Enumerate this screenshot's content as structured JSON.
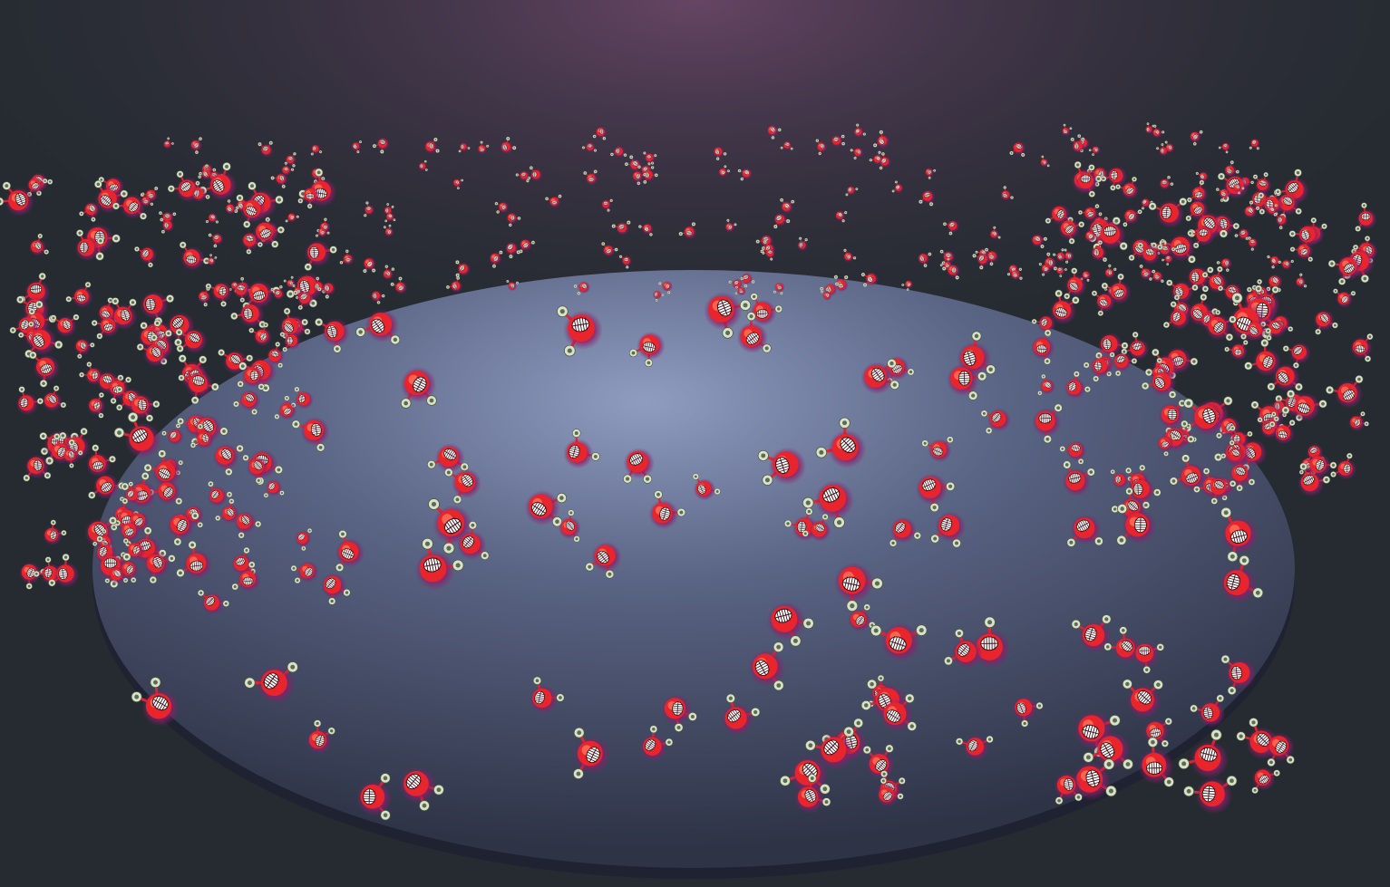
{
  "scene": {
    "background_color": "#252b31",
    "glow_color": "#6a4666",
    "floor_center_color": "#8f9cc0",
    "floor_edge_color": "#2e3346",
    "floor_rim_color": "#1f2230"
  },
  "creature": {
    "body_color": "#e8242c",
    "highlight_color": "#ff7058",
    "aura_color": "#8a1e6a",
    "teeth_color": "#ffffff",
    "mouth_color": "#3a0e14",
    "eye_ring_color": "#d9e2c4",
    "eye_pupil_color": "#5b6b5a",
    "antenna_color": "#e8242c"
  }
}
